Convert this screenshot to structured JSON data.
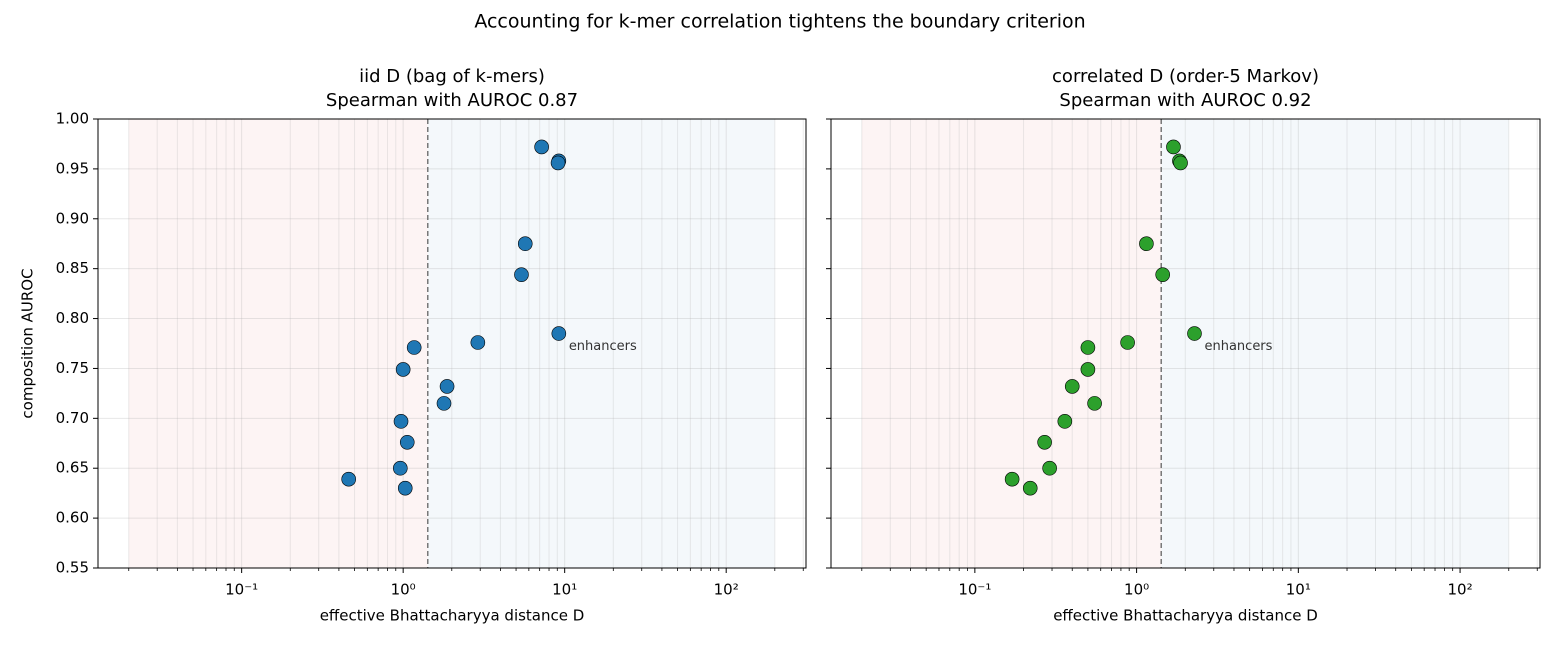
{
  "title": "Accounting for k-mer correlation tightens the boundary criterion",
  "chart_data": [
    {
      "type": "scatter",
      "title": "iid D (bag of k-mers)",
      "subtitle": "Spearman with AUROC 0.87",
      "xlabel": "effective Bhattacharyya distance D",
      "ylabel": "composition AUROC",
      "x": [
        7.2,
        9.2,
        9.1,
        5.7,
        5.4,
        9.2,
        2.9,
        1.17,
        1.0,
        1.87,
        1.79,
        0.97,
        1.06,
        0.96,
        0.46,
        1.03
      ],
      "values": [
        0.972,
        0.958,
        0.956,
        0.875,
        0.844,
        0.785,
        0.776,
        0.771,
        0.749,
        0.732,
        0.715,
        0.697,
        0.676,
        0.65,
        0.639,
        0.63
      ],
      "color": "#1f77b4",
      "annotations": [
        {
          "text": "enhancers",
          "x": 9.2,
          "y": 0.785
        }
      ],
      "threshold": 1.42,
      "regions": [
        {
          "from": 0.02,
          "to": 1.42,
          "color": "#d62728"
        },
        {
          "from": 1.42,
          "to": 200,
          "color": "#1f77b4"
        }
      ],
      "xscale": "log",
      "xlim": [
        0.0129,
        312
      ],
      "xticks": [
        {
          "value": 0.1,
          "label": "10⁻¹"
        },
        {
          "value": 1,
          "label": "10⁰"
        },
        {
          "value": 10,
          "label": "10¹"
        },
        {
          "value": 100,
          "label": "10²"
        }
      ],
      "ylim": [
        0.55,
        1.0
      ],
      "yticks": [
        0.55,
        {
          "value": 0.6,
          "label": "0.60"
        },
        0.65,
        {
          "value": 0.7,
          "label": "0.70"
        },
        0.75,
        {
          "value": 0.8,
          "label": "0.80"
        },
        0.85,
        {
          "value": 0.9,
          "label": "0.90"
        },
        0.95,
        {
          "value": 1.0,
          "label": "1.00"
        }
      ],
      "show_ytick_labels": true,
      "grid": true
    },
    {
      "type": "scatter",
      "title": "correlated D (order-5 Markov)",
      "subtitle": "Spearman with AUROC 0.92",
      "xlabel": "effective Bhattacharyya distance D",
      "x": [
        1.69,
        1.84,
        1.87,
        1.15,
        1.45,
        2.28,
        0.88,
        0.5,
        0.5,
        0.4,
        0.55,
        0.36,
        0.27,
        0.29,
        0.17,
        0.22
      ],
      "values": [
        0.972,
        0.958,
        0.956,
        0.875,
        0.844,
        0.785,
        0.776,
        0.771,
        0.749,
        0.732,
        0.715,
        0.697,
        0.676,
        0.65,
        0.639,
        0.63
      ],
      "color": "#2ca02c",
      "annotations": [
        {
          "text": "enhancers",
          "x": 2.28,
          "y": 0.785
        }
      ],
      "threshold": 1.42,
      "regions": [
        {
          "from": 0.02,
          "to": 1.42,
          "color": "#d62728"
        },
        {
          "from": 1.42,
          "to": 200,
          "color": "#1f77b4"
        }
      ],
      "xscale": "log",
      "xlim": [
        0.0129,
        312
      ],
      "xticks": [
        {
          "value": 0.1,
          "label": "10⁻¹"
        },
        {
          "value": 1,
          "label": "10⁰"
        },
        {
          "value": 10,
          "label": "10¹"
        },
        {
          "value": 100,
          "label": "10²"
        }
      ],
      "ylim": [
        0.55,
        1.0
      ],
      "yticks": [
        0.55,
        {
          "value": 0.6,
          "label": "0.60"
        },
        0.65,
        {
          "value": 0.7,
          "label": "0.70"
        },
        0.75,
        {
          "value": 0.8,
          "label": "0.80"
        },
        0.85,
        {
          "value": 0.9,
          "label": "0.90"
        },
        0.95,
        {
          "value": 1.0,
          "label": "1.00"
        }
      ],
      "show_ytick_labels": false,
      "grid": true
    }
  ]
}
